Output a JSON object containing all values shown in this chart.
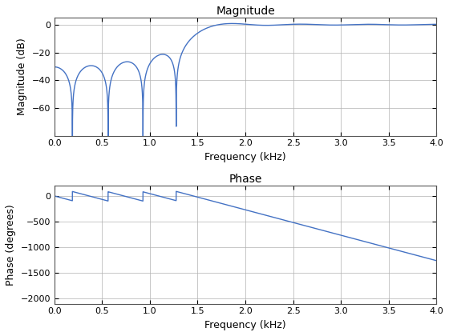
{
  "title_mag": "Magnitude",
  "title_phase": "Phase",
  "xlabel": "Frequency (kHz)",
  "ylabel_mag": "Magnitude (dB)",
  "ylabel_phase": "Phase (degrees)",
  "xlim": [
    0,
    4
  ],
  "ylim_mag": [
    -80,
    5
  ],
  "ylim_phase": [
    -2100,
    200
  ],
  "yticks_mag": [
    0,
    -20,
    -40,
    -60
  ],
  "yticks_phase": [
    0,
    -500,
    -1000,
    -1500,
    -2000
  ],
  "xticks": [
    0,
    0.5,
    1,
    1.5,
    2,
    2.5,
    3,
    3.5,
    4
  ],
  "line_color": "#4472c4",
  "line_width": 1.0,
  "background": "#ffffff",
  "grid_color": "#b0b0b0"
}
